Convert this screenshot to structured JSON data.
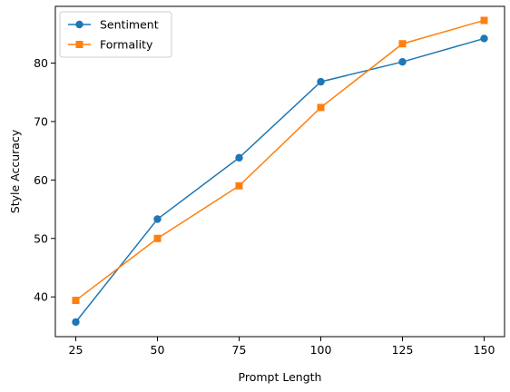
{
  "chart_data": {
    "type": "line",
    "title": "",
    "xlabel": "Prompt Length",
    "ylabel": "Style Accuracy",
    "x": [
      25,
      50,
      75,
      100,
      125,
      150
    ],
    "xlim": [
      18.75,
      156.25
    ],
    "ylim": [
      33.2,
      89.7
    ],
    "xticks": [
      25,
      50,
      75,
      100,
      125,
      150
    ],
    "yticks": [
      40,
      50,
      60,
      70,
      80
    ],
    "grid": false,
    "legend_position": "top-left",
    "series": [
      {
        "name": "Sentiment",
        "color": "#1f77b4",
        "marker": "circle",
        "values": [
          35.7,
          53.3,
          63.8,
          76.8,
          80.2,
          84.2
        ]
      },
      {
        "name": "Formality",
        "color": "#ff7f0e",
        "marker": "square",
        "values": [
          39.4,
          50.0,
          59.0,
          72.4,
          83.3,
          87.3
        ]
      }
    ]
  }
}
